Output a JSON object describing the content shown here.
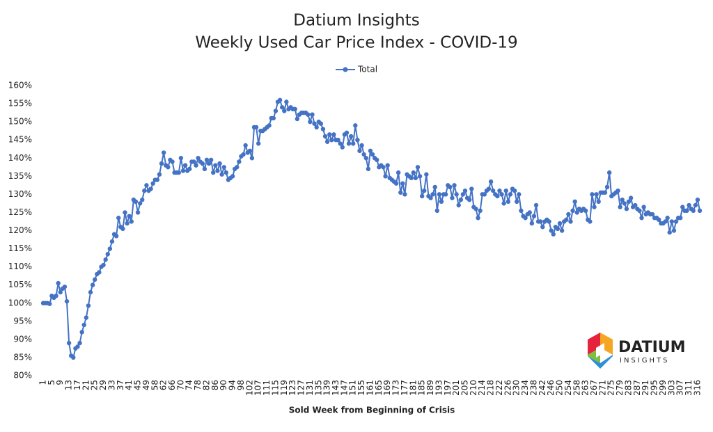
{
  "chart_data": {
    "type": "line",
    "title": "Datium Insights",
    "subtitle": "Weekly Used Car Price Index - COVID-19",
    "x_label": "Sold Week from Beginning of Crisis",
    "logo": {
      "name": "DATIUM",
      "tagline": "INSIGHTS"
    },
    "legend": "top",
    "ylim": [
      80,
      160
    ],
    "yticks": [
      {
        "value": 80,
        "label": "80%"
      },
      {
        "value": 85,
        "label": "85%"
      },
      {
        "value": 90,
        "label": "90%"
      },
      {
        "value": 95,
        "label": "95%"
      },
      {
        "value": 100,
        "label": "100%"
      },
      {
        "value": 105,
        "label": "105%"
      },
      {
        "value": 110,
        "label": "110%"
      },
      {
        "value": 115,
        "label": "115%"
      },
      {
        "value": 120,
        "label": "120%"
      },
      {
        "value": 125,
        "label": "125%"
      },
      {
        "value": 130,
        "label": "130%"
      },
      {
        "value": 135,
        "label": "135%"
      },
      {
        "value": 140,
        "label": "140%"
      },
      {
        "value": 145,
        "label": "145%"
      },
      {
        "value": 150,
        "label": "150%"
      },
      {
        "value": 155,
        "label": "155%"
      },
      {
        "value": 160,
        "label": "160%"
      }
    ],
    "categories": [
      "1",
      null,
      null,
      null,
      "5",
      null,
      null,
      null,
      "9",
      null,
      null,
      null,
      "13",
      null,
      null,
      null,
      "17",
      null,
      null,
      null,
      "21",
      null,
      null,
      null,
      "25",
      null,
      null,
      null,
      "29",
      null,
      null,
      null,
      "33",
      null,
      null,
      null,
      "37",
      null,
      null,
      null,
      "41",
      null,
      null,
      null,
      "45",
      null,
      null,
      null,
      "49",
      null,
      null,
      null,
      "58",
      null,
      null,
      null,
      "62",
      null,
      null,
      null,
      "66",
      null,
      null,
      null,
      "70",
      null,
      null,
      null,
      "74",
      null,
      null,
      null,
      "78",
      null,
      null,
      null,
      "82",
      null,
      null,
      null,
      "86",
      null,
      null,
      null,
      "90",
      null,
      null,
      null,
      "94",
      null,
      null,
      null,
      "98",
      null,
      null,
      null,
      "102",
      null,
      null,
      null,
      "107",
      null,
      null,
      null,
      "111",
      null,
      null,
      null,
      "115",
      null,
      null,
      null,
      "119",
      null,
      null,
      null,
      "123",
      null,
      null,
      null,
      "127",
      null,
      null,
      null,
      "131",
      null,
      null,
      null,
      "135",
      null,
      null,
      null,
      "139",
      null,
      null,
      null,
      "143",
      null,
      null,
      null,
      "147",
      null,
      null,
      null,
      "151",
      null,
      null,
      null,
      "155",
      null,
      null,
      null,
      "161",
      null,
      null,
      null,
      "165",
      null,
      null,
      null,
      "169",
      null,
      null,
      null,
      "173",
      null,
      null,
      null,
      "177",
      null,
      null,
      null,
      "181",
      null,
      null,
      null,
      "185",
      null,
      null,
      null,
      "189",
      null,
      null,
      null,
      "193",
      null,
      null,
      null,
      "197",
      null,
      null,
      null,
      "201",
      null,
      null,
      null,
      "205",
      null,
      null,
      null,
      "210",
      null,
      null,
      null,
      "214",
      null,
      null,
      null,
      "218",
      null,
      null,
      null,
      "222",
      null,
      null,
      null,
      "226",
      null,
      null,
      null,
      "230",
      null,
      null,
      null,
      "234",
      null,
      null,
      null,
      "238",
      null,
      null,
      null,
      "242",
      null,
      null,
      null,
      "246",
      null,
      null,
      null,
      "250",
      null,
      null,
      null,
      "254",
      null,
      null,
      null,
      "258",
      null,
      null,
      null,
      "263",
      null,
      null,
      null,
      "267",
      null,
      null,
      null,
      "271",
      null,
      null,
      null,
      "275",
      null,
      null,
      null,
      "279",
      null,
      null,
      null,
      "283",
      null,
      null,
      null,
      "287",
      null,
      null,
      null,
      "291",
      null,
      null,
      null,
      "295",
      null,
      null,
      null,
      "299",
      null,
      null,
      null,
      "303",
      null,
      null,
      null,
      "307",
      null,
      null,
      null,
      "311",
      null,
      null,
      null,
      "316",
      null
    ],
    "series": [
      {
        "name": "Total",
        "color": "#4472c4",
        "values": [
          100,
          100,
          100,
          99.8,
          102,
          101.5,
          102,
          105.5,
          103,
          104,
          104.5,
          100.5,
          89,
          85.5,
          85,
          87.5,
          88,
          89,
          92,
          94,
          96,
          99.3,
          103,
          105,
          106.5,
          108,
          108.5,
          110,
          110.5,
          112,
          113.5,
          115,
          117,
          119,
          118.5,
          123.5,
          121,
          120.5,
          125,
          122,
          124,
          122.5,
          128.5,
          128,
          125,
          127.5,
          128.5,
          131,
          132.5,
          131,
          131.5,
          133,
          134,
          134,
          135.5,
          138.5,
          141.5,
          138,
          137.5,
          139.5,
          139,
          136,
          136,
          136,
          140,
          136.5,
          138,
          136.5,
          137,
          139,
          139,
          138,
          140,
          139,
          138.5,
          137,
          139.5,
          138.5,
          139.5,
          136,
          138,
          136.5,
          138.5,
          135.5,
          137.5,
          136,
          134,
          134.5,
          135,
          137,
          137.5,
          139,
          140.5,
          141,
          143.5,
          141.5,
          142,
          140,
          148.5,
          148.5,
          144,
          147.5,
          147.5,
          148,
          148.5,
          149,
          151,
          151,
          153,
          155.5,
          156,
          154,
          153,
          155.5,
          153.5,
          154,
          153.5,
          153.5,
          150.8,
          152,
          152.5,
          152.5,
          152.5,
          152,
          150,
          152,
          149.5,
          148.5,
          150,
          149.5,
          148,
          146,
          144.5,
          146.5,
          145,
          146.5,
          145,
          145,
          144,
          143,
          146.5,
          147,
          144,
          146,
          144,
          149,
          145,
          142,
          143.5,
          141,
          140,
          137,
          142,
          141,
          140,
          139.5,
          137.5,
          138,
          137.5,
          135,
          138,
          134.5,
          134,
          133.5,
          133,
          136,
          130.5,
          133,
          130,
          135.5,
          135,
          134.5,
          136,
          134.5,
          137.5,
          135,
          129.5,
          131,
          135.5,
          129.5,
          129,
          130,
          132,
          125.5,
          130,
          128,
          130,
          130,
          132.5,
          132,
          129,
          132.5,
          130,
          127,
          128.5,
          130,
          131,
          129,
          128.5,
          131.5,
          126.5,
          126,
          123.5,
          125.5,
          130,
          130,
          131,
          131.5,
          133.5,
          131,
          130,
          129.5,
          131,
          130,
          127.5,
          131,
          128,
          130,
          131.5,
          131,
          128,
          130,
          125.5,
          124,
          123.5,
          124.5,
          125,
          122,
          124,
          127,
          122.5,
          122.5,
          121,
          122.5,
          123,
          122.5,
          120,
          119,
          121,
          120.5,
          122,
          120,
          122.5,
          123,
          124.5,
          122.5,
          125.5,
          128,
          125,
          126,
          125.5,
          126,
          125.5,
          123,
          122.5,
          130,
          126.5,
          130,
          128,
          130.5,
          130.5,
          130.5,
          132,
          136,
          129.5,
          130,
          130.5,
          131,
          126.5,
          128.5,
          127.5,
          126,
          128,
          129,
          126.5,
          127,
          126,
          125.5,
          123.5,
          126.5,
          124.5,
          125,
          124.5,
          124.5,
          123.5,
          123.5,
          123,
          122,
          122,
          122.5,
          123.5,
          119.5,
          122.5,
          120,
          122.5,
          123.5,
          123.5,
          126.5,
          125.5,
          125.5,
          127,
          126,
          125.5,
          127,
          128.5,
          125.5
        ]
      }
    ]
  }
}
